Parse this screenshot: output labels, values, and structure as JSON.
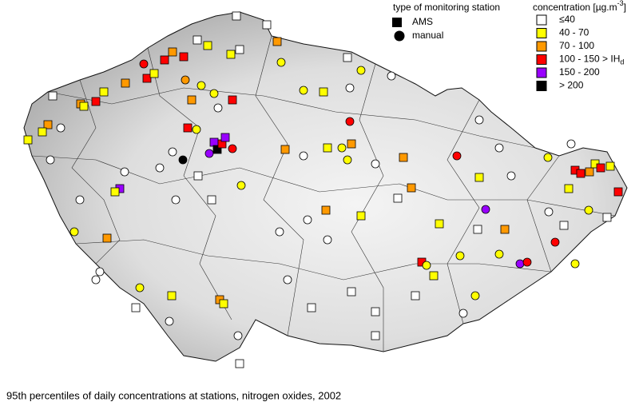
{
  "legend_type": {
    "title": "type of monitoring station",
    "items": [
      {
        "label": "AMS",
        "shape": "square"
      },
      {
        "label": "manual",
        "shape": "circle"
      }
    ]
  },
  "legend_concentration": {
    "title": "concentration [µg.m",
    "title_superscript": "-3",
    "title_end": "]",
    "items": [
      {
        "label": "≤40",
        "color": "#ffffff"
      },
      {
        "label": "40 - 70",
        "color": "#ffff00"
      },
      {
        "label": "70 - 100",
        "color": "#ff9900"
      },
      {
        "label": "100 - 150 > IH",
        "label_subscript": "d",
        "color": "#ff0000"
      },
      {
        "label": "150 - 200",
        "color": "#9900ff"
      },
      {
        "label": "> 200",
        "color": "#000000"
      }
    ]
  },
  "caption": "95th percentiles of daily concentrations at stations, nitrogen oxides, 2002"
}
